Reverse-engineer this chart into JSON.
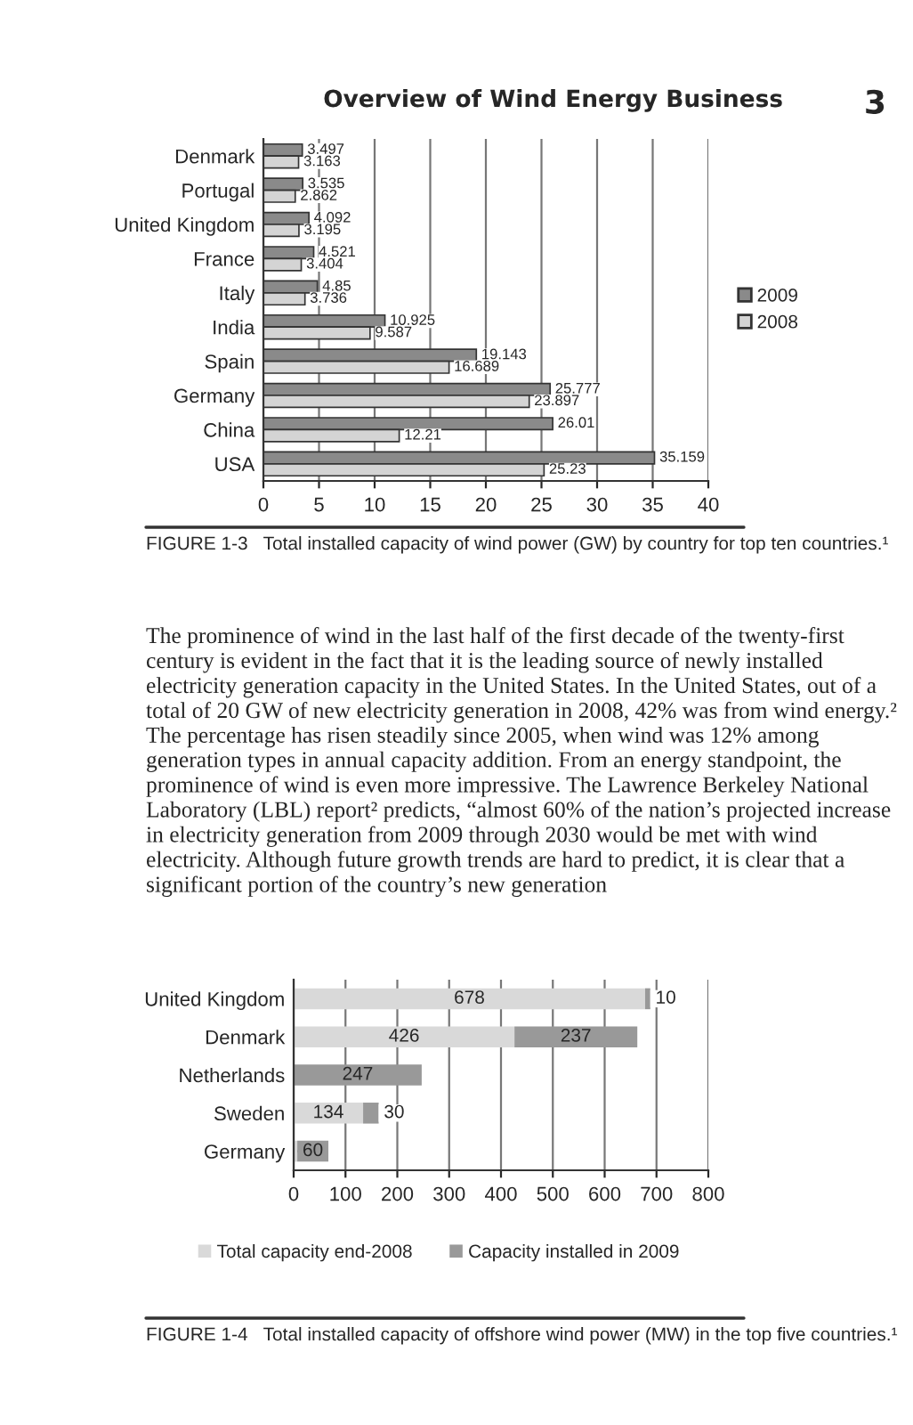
{
  "chart_data": [
    {
      "type": "bar",
      "orientation": "horizontal",
      "categories": [
        "Denmark",
        "Portugal",
        "United Kingdom",
        "France",
        "Italy",
        "India",
        "Spain",
        "Germany",
        "China",
        "USA"
      ],
      "series": [
        {
          "name": "2009",
          "color": "#8a8a8a",
          "values": [
            3.497,
            3.535,
            4.092,
            4.521,
            4.85,
            10.925,
            19.143,
            25.777,
            26.01,
            35.159
          ]
        },
        {
          "name": "2008",
          "color": "#d4d4d4",
          "values": [
            3.163,
            2.862,
            3.195,
            3.404,
            3.736,
            9.587,
            16.689,
            23.897,
            12.21,
            25.23
          ]
        }
      ],
      "xlim": [
        0,
        40
      ],
      "xticks": [
        0,
        5,
        10,
        15,
        20,
        25,
        30,
        35,
        40
      ],
      "grid": "x",
      "legend": "right",
      "data_labels": true,
      "annotations": [
        "Overview of Wind Energy Business",
        "3",
        "FIGURE 1-3   Total installed capacity of wind power (GW) by country for top ten countries.¹",
        "The prominence of wind in the last half of the first decade of the twenty-first century is evident in the fact that it is the leading source of newly installed electricity generation capacity in the United States. In the United States, out of a total of 20 GW of new electricity generation in 2008, 42% was from wind energy.² The percentage has risen steadily since 2005, when wind was 12% among generation types in annual capacity addition. From an energy standpoint, the prominence of wind is even more impressive. The Lawrence Berkeley National Laboratory (LBL) report² predicts, “almost 60% of the nation’s projected increase in electricity generation from 2009 through 2030 would be met with wind electricity. Although future growth trends are hard to predict, it is clear that a significant portion of the country’s new generation"
      ]
    },
    {
      "type": "bar",
      "orientation": "horizontal",
      "stacked": true,
      "categories": [
        "United Kingdom",
        "Denmark",
        "Netherlands",
        "Sweden",
        "Germany"
      ],
      "series": [
        {
          "name": "Total capacity end-2008",
          "color": "#d9d9d9",
          "values": [
            678,
            426,
            null,
            134,
            7
          ],
          "value_labels": [
            "678",
            "426",
            null,
            "134",
            null
          ]
        },
        {
          "name": "Capacity installed in 2009",
          "color": "#999999",
          "values": [
            10,
            237,
            247,
            30,
            60
          ],
          "value_labels": [
            "10",
            "237",
            "247",
            "30",
            "60"
          ]
        }
      ],
      "xlim": [
        0,
        800
      ],
      "xticks": [
        0,
        100,
        200,
        300,
        400,
        500,
        600,
        700,
        800
      ],
      "grid": "x",
      "legend": "bottom",
      "annotations": [
        "FIGURE 1-4   Total installed capacity of offshore wind power (MW) in the top five countries.¹"
      ]
    }
  ]
}
